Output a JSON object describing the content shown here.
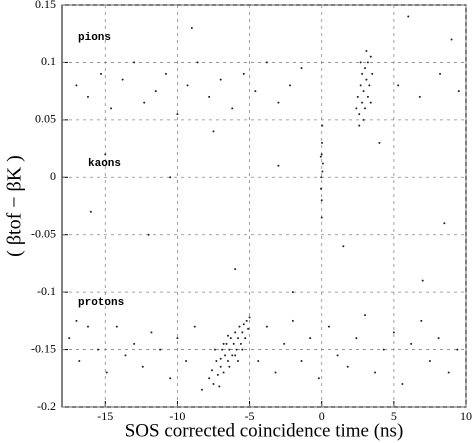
{
  "chart_data": {
    "type": "scatter",
    "xlabel": "SOS corrected coincidence time (ns)",
    "ylabel": "( βtof − βK )",
    "annotations": [
      "pions",
      "kaons",
      "protons"
    ],
    "xlim": [
      -18,
      10
    ],
    "xticks": [
      -15,
      -10,
      -5,
      0,
      5,
      10
    ],
    "ylim": [
      -0.2,
      0.15
    ],
    "yticks": [
      -0.2,
      -0.15,
      -0.1,
      -0.05,
      0,
      0.05,
      0.1,
      0.15
    ],
    "grid": true,
    "color": "#222222",
    "x": [
      -7.8,
      -7.6,
      -7.5,
      -7.3,
      -7.2,
      -7.0,
      -7.0,
      -6.9,
      -6.8,
      -6.7,
      -6.6,
      -6.5,
      -6.4,
      -6.3,
      -6.2,
      -6.1,
      -6.0,
      -5.9,
      -5.8,
      -5.7,
      -5.6,
      -5.5,
      -5.4,
      -5.3,
      -5.2,
      -5.1,
      -5.0,
      -6.8,
      -6.4,
      -7.4,
      -5.8,
      -6.0,
      -7.1,
      -6.5,
      -5.5,
      -17.5,
      -16.8,
      -16.2,
      -15.5,
      -14.9,
      -14.2,
      -13.6,
      -13.0,
      -12.4,
      -11.8,
      -11.2,
      -10.5,
      -10.0,
      -9.4,
      -8.8,
      -8.3,
      -4.4,
      -3.8,
      -3.2,
      -2.6,
      -2.0,
      -1.4,
      -0.8,
      -0.2,
      0.5,
      1.1,
      1.8,
      2.4,
      3.0,
      3.7,
      4.3,
      5.0,
      5.6,
      6.2,
      6.9,
      7.5,
      8.1,
      8.8,
      9.4,
      -17.0,
      2.4,
      2.5,
      2.6,
      2.7,
      2.8,
      2.8,
      2.9,
      3.0,
      3.0,
      3.1,
      3.2,
      3.2,
      3.3,
      3.4,
      3.5,
      2.6,
      2.9,
      3.1,
      3.4,
      2.7,
      -17,
      -16.2,
      -15.3,
      -14.6,
      -13.8,
      -13.0,
      -12.3,
      -11.5,
      -10.8,
      -10.0,
      -9.3,
      -8.6,
      -7.8,
      -7.0,
      -6.2,
      -5.4,
      -4.6,
      -3.8,
      -3.0,
      -2.2,
      -1.4,
      5.3,
      6.8,
      8.2,
      9.5,
      0,
      0.05,
      -0.05,
      0.02,
      0.0,
      0.08,
      -0.03,
      0.04,
      0.0,
      -0.06,
      -15,
      -12,
      -9,
      -6,
      -3,
      1.5,
      4,
      7,
      9,
      -16,
      -10.5,
      -2,
      6,
      -7.5,
      8.5
    ],
    "values": [
      -0.175,
      -0.168,
      -0.18,
      -0.16,
      -0.172,
      -0.158,
      -0.165,
      -0.15,
      -0.17,
      -0.155,
      -0.145,
      -0.16,
      -0.15,
      -0.14,
      -0.155,
      -0.145,
      -0.135,
      -0.15,
      -0.14,
      -0.13,
      -0.145,
      -0.135,
      -0.128,
      -0.14,
      -0.125,
      -0.132,
      -0.122,
      -0.145,
      -0.165,
      -0.15,
      -0.16,
      -0.155,
      -0.182,
      -0.138,
      -0.15,
      -0.14,
      -0.16,
      -0.13,
      -0.15,
      -0.17,
      -0.13,
      -0.155,
      -0.145,
      -0.165,
      -0.135,
      -0.15,
      -0.175,
      -0.14,
      -0.16,
      -0.13,
      -0.185,
      -0.16,
      -0.13,
      -0.17,
      -0.145,
      -0.125,
      -0.16,
      -0.14,
      -0.175,
      -0.13,
      -0.155,
      -0.165,
      -0.14,
      -0.12,
      -0.17,
      -0.15,
      -0.135,
      -0.18,
      -0.145,
      -0.125,
      -0.16,
      -0.14,
      -0.17,
      -0.15,
      -0.125,
      0.06,
      0.07,
      0.055,
      0.08,
      0.065,
      0.09,
      0.075,
      0.095,
      0.06,
      0.085,
      0.07,
      0.1,
      0.08,
      0.105,
      0.09,
      0.045,
      0.05,
      0.11,
      0.065,
      0.1,
      0.08,
      0.07,
      0.09,
      0.06,
      0.085,
      0.1,
      0.065,
      0.075,
      0.09,
      0.055,
      0.08,
      0.1,
      0.07,
      0.085,
      0.06,
      0.09,
      0.075,
      0.1,
      0.065,
      0.08,
      0.095,
      0.08,
      0.07,
      0.09,
      0.075,
      0.02,
      0.005,
      -0.01,
      0.03,
      -0.02,
      0.012,
      0.0,
      0.045,
      -0.035,
      0.018,
      0.02,
      -0.05,
      0.13,
      -0.08,
      0.01,
      -0.06,
      0.03,
      -0.09,
      0.12,
      -0.03,
      0.0,
      -0.1,
      0.14,
      0.04,
      -0.04
    ]
  }
}
